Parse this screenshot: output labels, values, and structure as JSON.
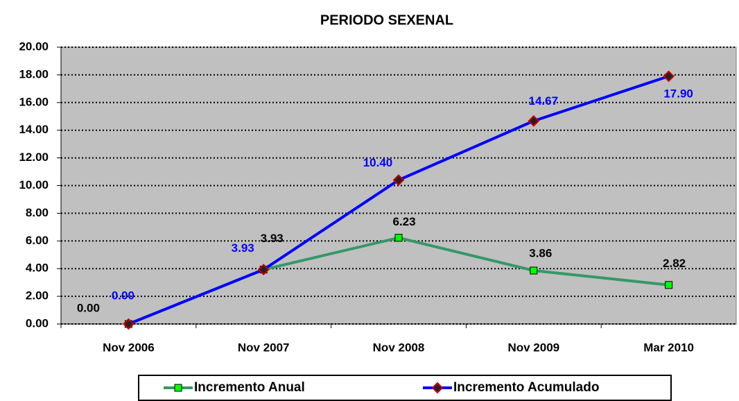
{
  "chart_data": {
    "type": "line",
    "title": "PERIODO SEXENAL",
    "categories": [
      "Nov 2006",
      "Nov 2007",
      "Nov 2008",
      "Nov 2009",
      "Mar 2010"
    ],
    "series": [
      {
        "name": "Incremento Anual",
        "color": "#339966",
        "marker_color": "#00ff00",
        "label_color": "#000000",
        "values": [
          0,
          3.93,
          6.23,
          3.86,
          2.82
        ],
        "value_labels": [
          "0.00",
          "3.93",
          "6.23",
          "3.86",
          "2.82"
        ]
      },
      {
        "name": "Incremento Acumulado",
        "color": "#0000ff",
        "marker_color": "#cc0000",
        "label_color": "#0000ff",
        "values": [
          0,
          3.93,
          10.4,
          14.67,
          17.9
        ],
        "value_labels": [
          "0.00",
          "3.93",
          "10.40",
          "14.67",
          "17.90"
        ]
      }
    ],
    "ylim": [
      0,
      20
    ],
    "yticks": [
      {
        "value": 0,
        "label": "0.00"
      },
      {
        "value": 2,
        "label": "2.00"
      },
      {
        "value": 4,
        "label": "4.00"
      },
      {
        "value": 6,
        "label": "6.00"
      },
      {
        "value": 8,
        "label": "8.00"
      },
      {
        "value": 10,
        "label": "10.00"
      },
      {
        "value": 12,
        "label": "12.00"
      },
      {
        "value": 14,
        "label": "14.00"
      },
      {
        "value": 16,
        "label": "16.00"
      },
      {
        "value": 18,
        "label": "18.00"
      },
      {
        "value": 20,
        "label": "20.00"
      }
    ],
    "grid": true,
    "plot_background": "#c0c0c0",
    "legend": "bottom"
  }
}
